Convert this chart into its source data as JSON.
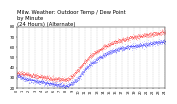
{
  "title": "Milw. Weather: Outdoor Temp / Dew Point\nby Minute\n(24 Hours) (Alternate)",
  "title_fontsize": 3.8,
  "background_color": "#ffffff",
  "grid_color": "#aaaaaa",
  "temp_color": "#ff0000",
  "dew_color": "#0000ff",
  "ylim": [
    20,
    80
  ],
  "xlim": [
    0,
    1440
  ],
  "ylabel_fontsize": 3.0,
  "xlabel_fontsize": 2.5,
  "yticks": [
    20,
    30,
    40,
    50,
    60,
    70,
    80
  ],
  "xticks_labels": [
    "0",
    "1",
    "2",
    "3",
    "4",
    "5",
    "6",
    "7",
    "8",
    "9",
    "10",
    "11",
    "12",
    "13",
    "14",
    "15",
    "16",
    "17",
    "18",
    "19",
    "20",
    "21",
    "22",
    "23",
    "24"
  ],
  "xticks_positions": [
    0,
    60,
    120,
    180,
    240,
    300,
    360,
    420,
    480,
    540,
    600,
    660,
    720,
    780,
    840,
    900,
    960,
    1020,
    1080,
    1140,
    1200,
    1260,
    1320,
    1380,
    1440
  ],
  "temp_keypoints": [
    [
      0,
      35
    ],
    [
      60,
      34
    ],
    [
      120,
      33
    ],
    [
      180,
      32
    ],
    [
      240,
      31
    ],
    [
      300,
      30
    ],
    [
      360,
      29
    ],
    [
      420,
      29
    ],
    [
      480,
      28
    ],
    [
      540,
      32
    ],
    [
      600,
      38
    ],
    [
      660,
      46
    ],
    [
      720,
      52
    ],
    [
      780,
      56
    ],
    [
      840,
      60
    ],
    [
      900,
      63
    ],
    [
      960,
      65
    ],
    [
      1020,
      67
    ],
    [
      1080,
      69
    ],
    [
      1140,
      70
    ],
    [
      1200,
      71
    ],
    [
      1260,
      72
    ],
    [
      1320,
      73
    ],
    [
      1380,
      74
    ],
    [
      1440,
      75
    ]
  ],
  "dew_keypoints": [
    [
      0,
      32
    ],
    [
      60,
      30
    ],
    [
      120,
      28
    ],
    [
      180,
      27
    ],
    [
      240,
      26
    ],
    [
      300,
      25
    ],
    [
      360,
      24
    ],
    [
      420,
      23
    ],
    [
      480,
      22
    ],
    [
      540,
      25
    ],
    [
      600,
      30
    ],
    [
      660,
      38
    ],
    [
      720,
      44
    ],
    [
      780,
      48
    ],
    [
      840,
      52
    ],
    [
      900,
      55
    ],
    [
      960,
      57
    ],
    [
      1020,
      59
    ],
    [
      1080,
      60
    ],
    [
      1140,
      61
    ],
    [
      1200,
      62
    ],
    [
      1260,
      63
    ],
    [
      1320,
      64
    ],
    [
      1380,
      65
    ],
    [
      1440,
      66
    ]
  ]
}
